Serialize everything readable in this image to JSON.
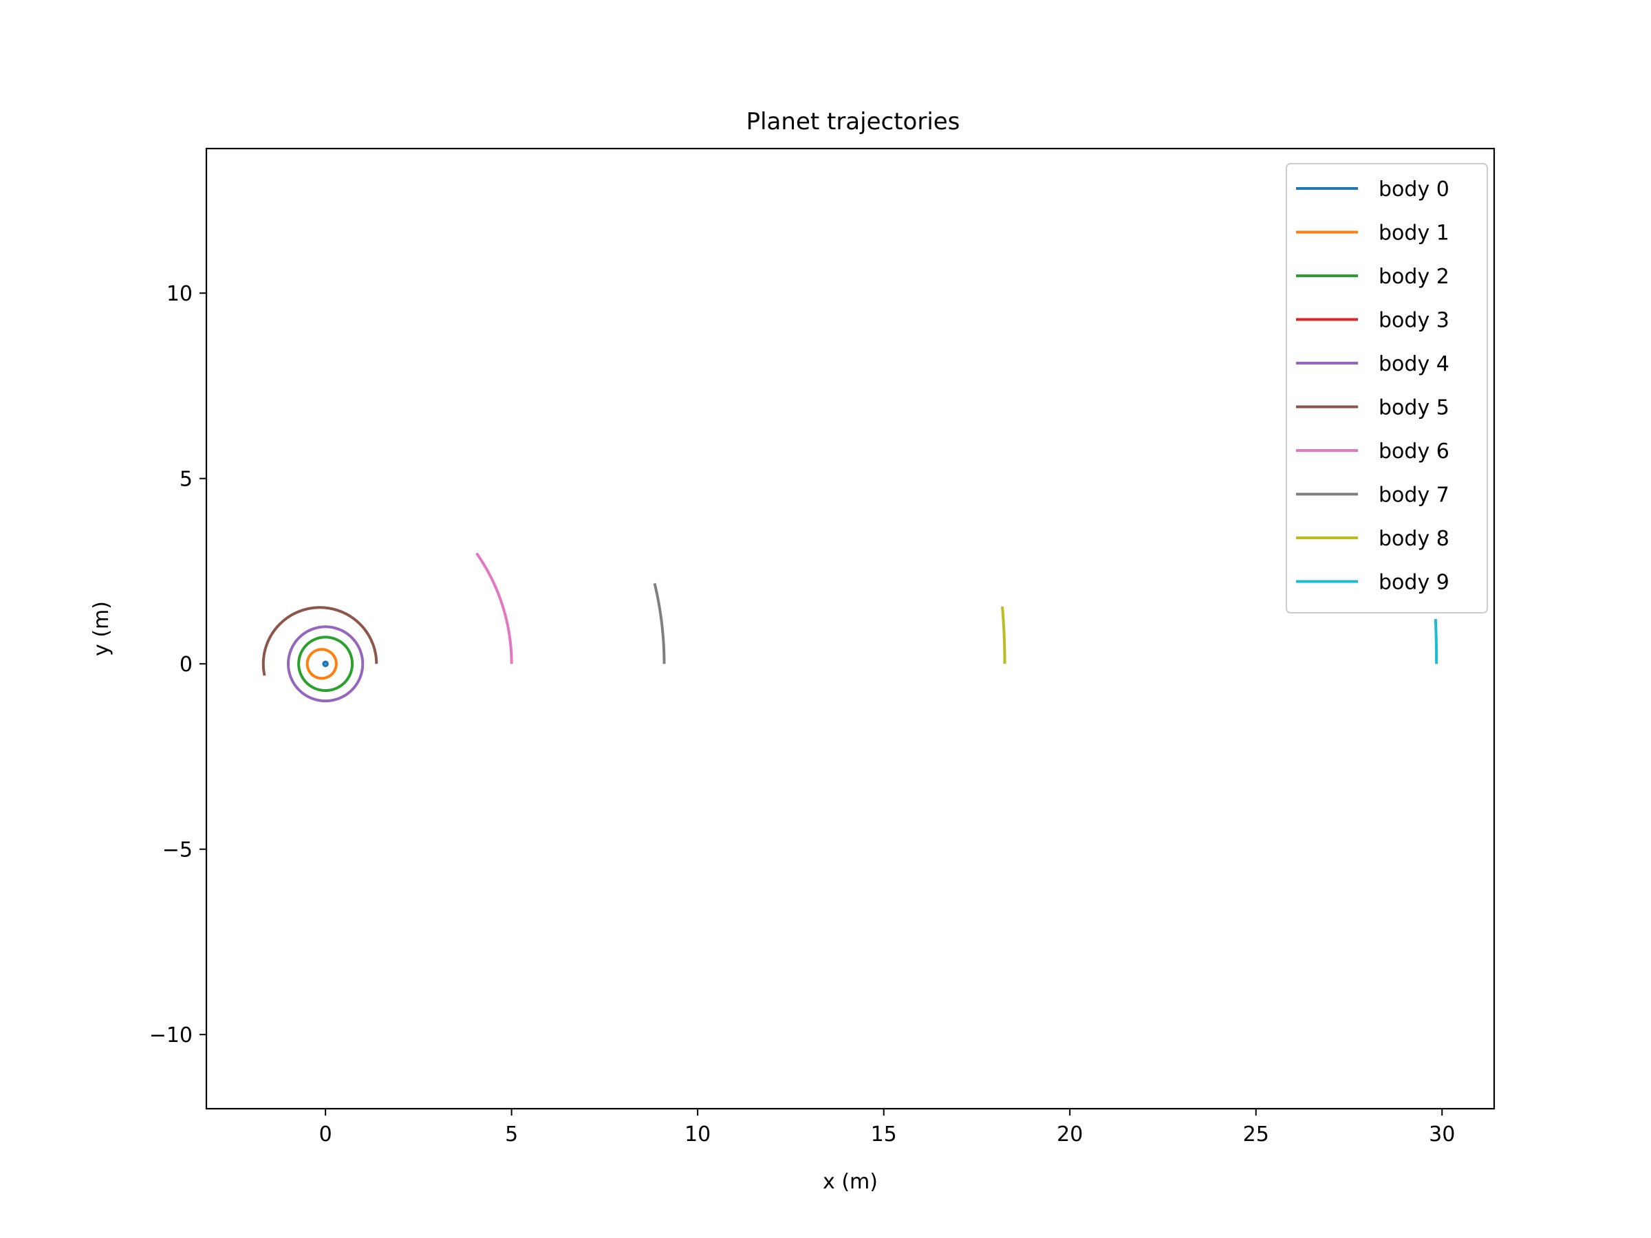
{
  "chart_data": {
    "type": "line",
    "title": "Planet trajectories",
    "xlabel": "x (m)",
    "ylabel": "y (m)",
    "xlim": [
      -3.2,
      31.4
    ],
    "ylim": [
      -12,
      13.9
    ],
    "xticks": [
      0,
      5,
      10,
      15,
      20,
      25,
      30
    ],
    "xtick_labels": [
      "0",
      "5",
      "10",
      "15",
      "20",
      "25",
      "30"
    ],
    "yticks": [
      10,
      5,
      0,
      -5,
      -10
    ],
    "ytick_labels": [
      "10",
      "5",
      "0",
      "−5",
      "−10"
    ],
    "grid": false,
    "legend_position": "top-right",
    "series": [
      {
        "name": "body 0",
        "color": "#1f77b4",
        "arc": {
          "radius": 0.05,
          "cx": 0,
          "cy": 0,
          "start_deg": 0,
          "end_deg": 360
        }
      },
      {
        "name": "body 1",
        "color": "#ff7f0e",
        "arc": {
          "radius": 0.39,
          "cx": -0.1,
          "cy": 0,
          "start_deg": 0,
          "end_deg": 360
        }
      },
      {
        "name": "body 2",
        "color": "#2ca02c",
        "arc": {
          "radius": 0.72,
          "cx": 0,
          "cy": 0,
          "start_deg": 0,
          "end_deg": 360
        }
      },
      {
        "name": "body 3",
        "color": "#d62728",
        "arc": {
          "radius": 0.72,
          "cx": 0,
          "cy": 0,
          "start_deg": 0,
          "end_deg": 0
        }
      },
      {
        "name": "body 4",
        "color": "#9467bd",
        "arc": {
          "radius": 1.0,
          "cx": 0,
          "cy": 0,
          "start_deg": 0,
          "end_deg": 360
        }
      },
      {
        "name": "body 5",
        "color": "#8c564b",
        "arc": {
          "radius": 1.52,
          "cx": -0.15,
          "cy": 0,
          "start_deg": 0,
          "end_deg": 192
        }
      },
      {
        "name": "body 6",
        "color": "#e377c2",
        "arc": {
          "radius": 5.2,
          "cx": -0.2,
          "cy": 0,
          "start_deg": 0,
          "end_deg": 35
        }
      },
      {
        "name": "body 7",
        "color": "#7f7f7f",
        "arc": {
          "radius": 9.3,
          "cx": -0.2,
          "cy": 0,
          "start_deg": 0,
          "end_deg": 13.5
        }
      },
      {
        "name": "body 8",
        "color": "#bcbd22",
        "arc": {
          "radius": 18.5,
          "cx": -0.25,
          "cy": 0,
          "start_deg": 0,
          "end_deg": 4.8
        }
      },
      {
        "name": "body 9",
        "color": "#17becf",
        "arc": {
          "radius": 30.1,
          "cx": -0.25,
          "cy": 0,
          "start_deg": 0,
          "end_deg": 2.3
        }
      }
    ]
  }
}
